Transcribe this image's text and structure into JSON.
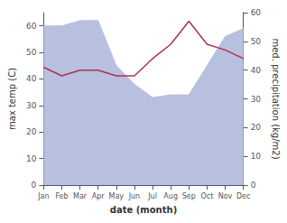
{
  "chart_data": {
    "type": "line",
    "xlabel": "date (month)",
    "ylabel": "max temp (C)",
    "y2label": "med. precipitation (kg/m2)",
    "categories": [
      "Jan",
      "Feb",
      "Mar",
      "Apr",
      "May",
      "Jun",
      "Jul",
      "Aug",
      "Sep",
      "Oct",
      "Nov",
      "Dec"
    ],
    "series": [
      {
        "type": "area",
        "color": "#b8c0e0",
        "values": [
          60,
          60,
          62,
          62,
          45,
          38,
          33,
          34,
          34,
          45,
          56,
          59
        ]
      },
      {
        "type": "line",
        "color": "#b03050",
        "axis": "y2",
        "values": [
          41,
          38,
          40,
          40,
          38,
          38,
          44,
          49,
          57,
          49,
          47,
          44
        ]
      }
    ],
    "ylim": [
      0,
      65
    ],
    "yticks": [
      0,
      10,
      20,
      30,
      40,
      50,
      60
    ],
    "y2lim": [
      0,
      60
    ],
    "y2ticks": [
      0,
      10,
      20,
      30,
      40,
      50,
      60
    ],
    "grid": false
  }
}
